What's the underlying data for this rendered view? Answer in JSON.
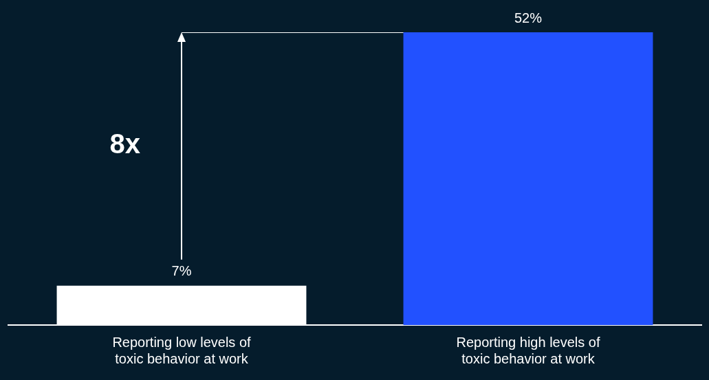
{
  "chart_data": {
    "type": "bar",
    "categories": [
      "Reporting low levels of toxic behavior at work",
      "Reporting high levels of toxic behavior at work"
    ],
    "values": [
      7,
      52
    ],
    "colors": [
      "#ffffff",
      "#2251ff"
    ],
    "value_labels": [
      "7%",
      "52%"
    ],
    "ylim": [
      0,
      52
    ],
    "tick_labels": "x",
    "ref_lines": [
      {
        "axis": "y",
        "value": 52,
        "color": "#ffffff"
      }
    ],
    "legend": false,
    "annotations": [
      "8x"
    ]
  }
}
